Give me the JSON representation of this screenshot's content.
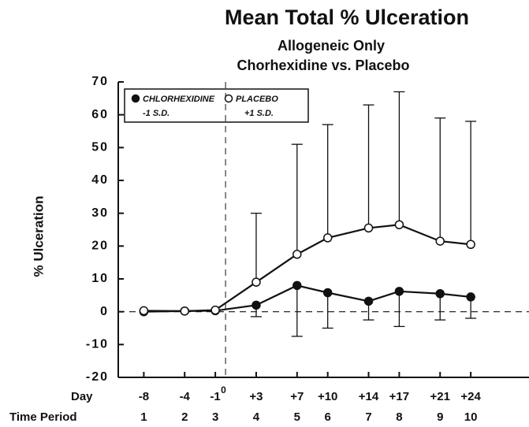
{
  "chart_data": {
    "type": "line",
    "title": "Mean Total % Ulceration",
    "subtitle": [
      "Allogeneic Only",
      "Chorhexidine vs. Placebo"
    ],
    "ylabel": "% Ulceration",
    "x_row_labels": [
      "Day",
      "Time Period"
    ],
    "x": [
      -8,
      -4,
      -1,
      3,
      7,
      10,
      14,
      17,
      21,
      24
    ],
    "time_periods": [
      1,
      2,
      3,
      4,
      5,
      6,
      7,
      8,
      9,
      10
    ],
    "xticks": [
      -8,
      -4,
      -1,
      {
        "value": 3,
        "label": "+3"
      },
      {
        "value": 7,
        "label": "+7"
      },
      {
        "value": 10,
        "label": "+10"
      },
      {
        "value": 14,
        "label": "+14"
      },
      {
        "value": 17,
        "label": "+17"
      },
      {
        "value": 21,
        "label": "+21"
      },
      {
        "value": 24,
        "label": "+24"
      }
    ],
    "day_zero": {
      "value": 0,
      "label": "0"
    },
    "xlim": [
      -10.5,
      29.7
    ],
    "ylim": [
      -20,
      70
    ],
    "yticks": [
      -20,
      -10,
      0,
      10,
      20,
      30,
      40,
      50,
      60,
      70
    ],
    "series": [
      {
        "name": "CHLORHEXIDINE",
        "error_label": "-1 S.D.",
        "marker": "filled",
        "color": "#111111",
        "error_direction": "down",
        "values": [
          0,
          0.2,
          0.3,
          2,
          8,
          5.8,
          3.2,
          6.2,
          5.5,
          4.5
        ],
        "errors": [
          0,
          0,
          0,
          3.5,
          15.5,
          10.8,
          5.7,
          10.7,
          8,
          6.5
        ]
      },
      {
        "name": "PLACEBO",
        "error_label": "+1 S.D.",
        "marker": "open",
        "color": "#111111",
        "error_direction": "up",
        "values": [
          0.3,
          0.2,
          0.5,
          9,
          17.5,
          22.5,
          25.5,
          26.5,
          21.5,
          20.5
        ],
        "errors": [
          0,
          0,
          0,
          21,
          33.5,
          34.5,
          37.5,
          40.5,
          37.5,
          37.5
        ]
      }
    ]
  }
}
